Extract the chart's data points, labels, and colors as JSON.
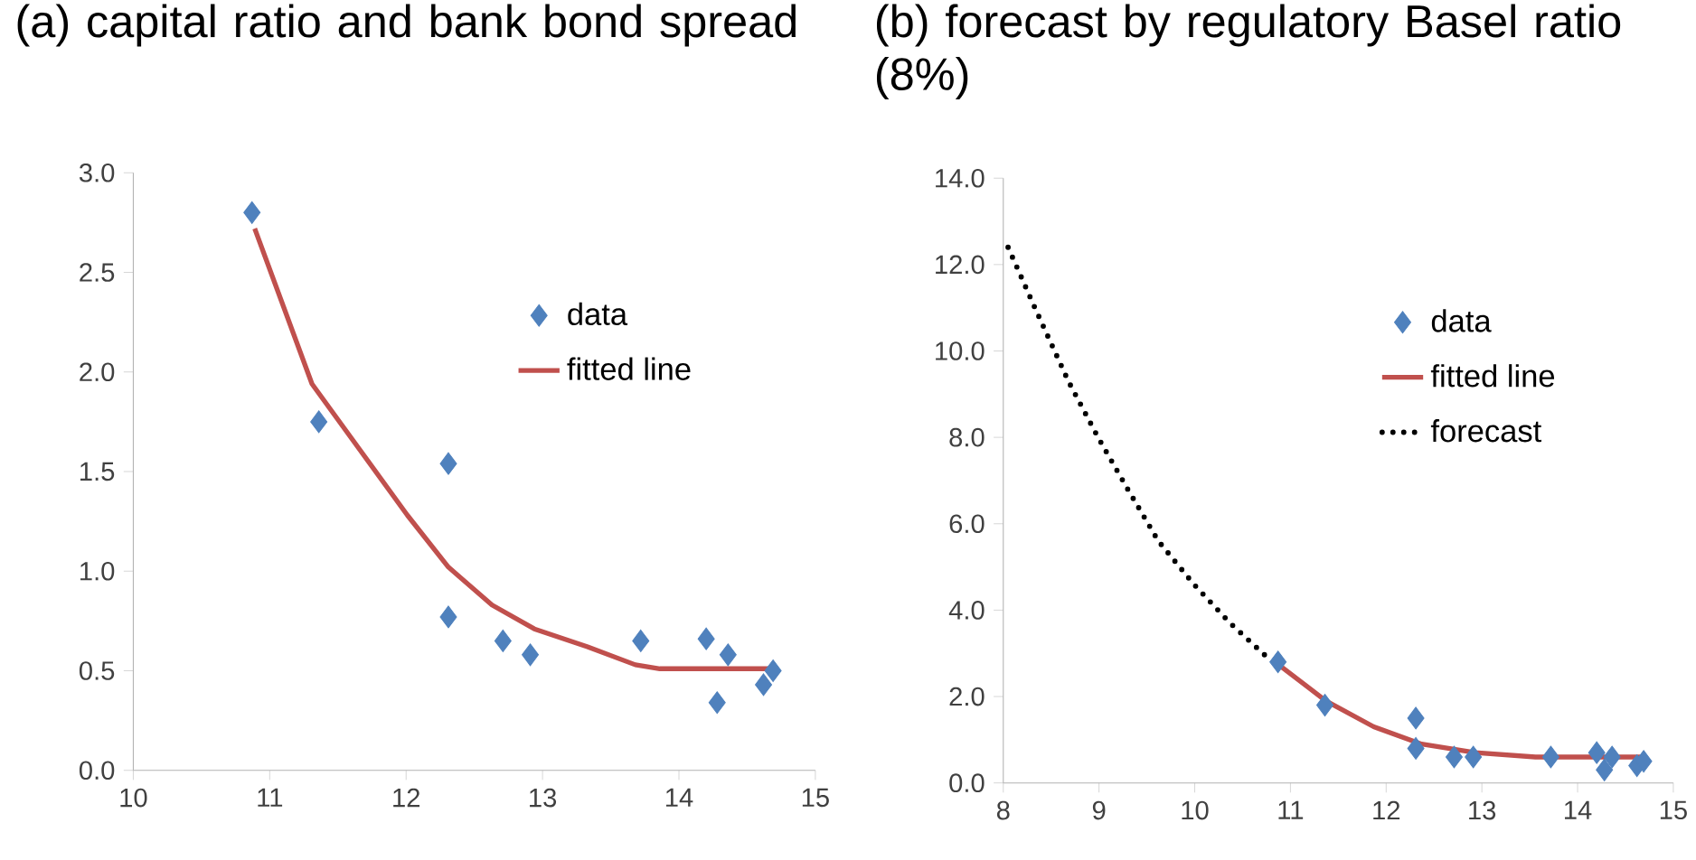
{
  "chart_data": [
    {
      "type": "scatter",
      "title": "(a) capital ratio and bank bond spread",
      "xlim": [
        10,
        15
      ],
      "xticks": [
        10,
        11,
        12,
        13,
        14,
        15
      ],
      "ylim": [
        0,
        3
      ],
      "yticks": [
        {
          "value": 0,
          "label": "0.0"
        },
        {
          "value": 0.5,
          "label": "0.5"
        },
        {
          "value": 1,
          "label": "1.0"
        },
        {
          "value": 1.5,
          "label": "1.5"
        },
        {
          "value": 2,
          "label": "2.0"
        },
        {
          "value": 2.5,
          "label": "2.5"
        },
        {
          "value": 3,
          "label": "3.0"
        }
      ],
      "grid": false,
      "legend": "top right",
      "series": [
        {
          "name": "data",
          "type": "scatter",
          "marker": "diamond",
          "color": "#4f81bd",
          "x": [
            10.87,
            11.36,
            12.31,
            12.31,
            12.71,
            12.91,
            13.72,
            14.2,
            14.36,
            14.28,
            14.62,
            14.69
          ],
          "values": [
            2.8,
            1.75,
            1.54,
            0.77,
            0.65,
            0.58,
            0.65,
            0.66,
            0.58,
            0.34,
            0.43,
            0.5
          ]
        },
        {
          "name": "fitted line",
          "type": "line",
          "line_style": "solid",
          "color": "#c0504d",
          "x": [
            10.89,
            11.31,
            11.66,
            12.01,
            12.31,
            12.63,
            12.94,
            13.33,
            13.68,
            13.86,
            14.69
          ],
          "values": [
            2.72,
            1.94,
            1.61,
            1.28,
            1.02,
            0.83,
            0.71,
            0.62,
            0.53,
            0.51,
            0.51
          ]
        }
      ]
    },
    {
      "type": "scatter",
      "title": "(b) forecast by regulatory Basel ratio (8%)",
      "xlim": [
        8,
        15
      ],
      "xticks": [
        8,
        9,
        10,
        11,
        12,
        13,
        14,
        15
      ],
      "ylim": [
        0,
        14
      ],
      "yticks": [
        {
          "value": 0,
          "label": "0.0"
        },
        {
          "value": 2,
          "label": "2.0"
        },
        {
          "value": 4,
          "label": "4.0"
        },
        {
          "value": 6,
          "label": "6.0"
        },
        {
          "value": 8,
          "label": "8.0"
        },
        {
          "value": 10,
          "label": "10.0"
        },
        {
          "value": 12,
          "label": "12.0"
        },
        {
          "value": 14,
          "label": "14.0"
        }
      ],
      "grid": false,
      "legend": "top right",
      "series": [
        {
          "name": "data",
          "type": "scatter",
          "marker": "diamond",
          "color": "#4f81bd",
          "x": [
            10.87,
            11.36,
            12.31,
            12.31,
            12.71,
            12.91,
            13.72,
            14.2,
            14.36,
            14.28,
            14.62,
            14.69
          ],
          "values": [
            2.8,
            1.8,
            1.5,
            0.8,
            0.6,
            0.6,
            0.6,
            0.7,
            0.6,
            0.3,
            0.4,
            0.5
          ]
        },
        {
          "name": "fitted line",
          "type": "line",
          "line_style": "solid",
          "color": "#c0504d",
          "x": [
            10.84,
            11.37,
            11.87,
            12.37,
            12.93,
            13.56,
            14.69
          ],
          "values": [
            2.8,
            1.9,
            1.3,
            0.9,
            0.7,
            0.6,
            0.6
          ]
        },
        {
          "name": "forecast",
          "type": "line",
          "line_style": "dotted",
          "color": "#000000",
          "x": [
            8.05,
            8.33,
            8.68,
            8.99,
            9.3,
            9.62,
            9.99,
            10.37,
            10.81
          ],
          "values": [
            12.4,
            11.0,
            9.3,
            8.0,
            6.8,
            5.6,
            4.6,
            3.7,
            2.8
          ]
        }
      ]
    }
  ]
}
